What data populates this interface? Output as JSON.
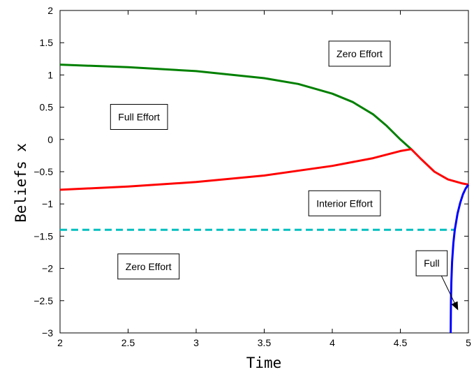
{
  "chart_data": {
    "type": "line",
    "title": "",
    "xlabel": "Time",
    "ylabel": "Beliefs x",
    "xlim": [
      2,
      5
    ],
    "ylim": [
      -3,
      2
    ],
    "xticks": [
      2,
      2.5,
      3,
      3.5,
      4,
      4.5,
      5
    ],
    "yticks": [
      -3,
      -2.5,
      -2,
      -1.5,
      -1,
      -0.5,
      0,
      0.5,
      1,
      1.5,
      2
    ],
    "grid": false,
    "series": [
      {
        "color": "#008000",
        "style": "solid",
        "x": [
          2.0,
          2.5,
          3.0,
          3.5,
          3.75,
          4.0,
          4.15,
          4.3,
          4.4,
          4.5,
          4.58
        ],
        "y": [
          1.16,
          1.12,
          1.06,
          0.95,
          0.86,
          0.71,
          0.58,
          0.39,
          0.21,
          0.0,
          -0.15
        ]
      },
      {
        "color": "#ff0000",
        "style": "solid",
        "x": [
          2.0,
          2.5,
          3.0,
          3.5,
          4.0,
          4.3,
          4.5,
          4.58,
          4.65,
          4.75,
          4.85,
          4.95,
          5.0
        ],
        "y": [
          -0.78,
          -0.73,
          -0.66,
          -0.56,
          -0.41,
          -0.29,
          -0.18,
          -0.15,
          -0.3,
          -0.5,
          -0.62,
          -0.68,
          -0.7
        ]
      },
      {
        "color": "#00bfbf",
        "style": "dashed",
        "x": [
          2.0,
          4.9
        ],
        "y": [
          -1.4,
          -1.4
        ]
      },
      {
        "color": "#0000ff",
        "style": "solid",
        "x": [
          4.87,
          4.872,
          4.875,
          4.88,
          4.89,
          4.9,
          4.92,
          4.94,
          4.96,
          4.98,
          5.0
        ],
        "y": [
          -3.0,
          -2.5,
          -2.2,
          -1.9,
          -1.6,
          -1.4,
          -1.15,
          -0.98,
          -0.85,
          -0.76,
          -0.7
        ]
      }
    ],
    "annotations": [
      {
        "text": "Zero Effort",
        "x": 4.2,
        "y": 1.33,
        "arrow": false
      },
      {
        "text": "Full Effort",
        "x": 2.58,
        "y": 0.35,
        "arrow": false
      },
      {
        "text": "Interior Effort",
        "x": 4.09,
        "y": -0.99,
        "arrow": false
      },
      {
        "text": "Zero Effort",
        "x": 2.65,
        "y": -1.97,
        "arrow": false
      },
      {
        "text": "Full",
        "x": 4.73,
        "y": -1.92,
        "arrow": true,
        "arrow_to": [
          4.92,
          -2.63
        ]
      }
    ]
  }
}
